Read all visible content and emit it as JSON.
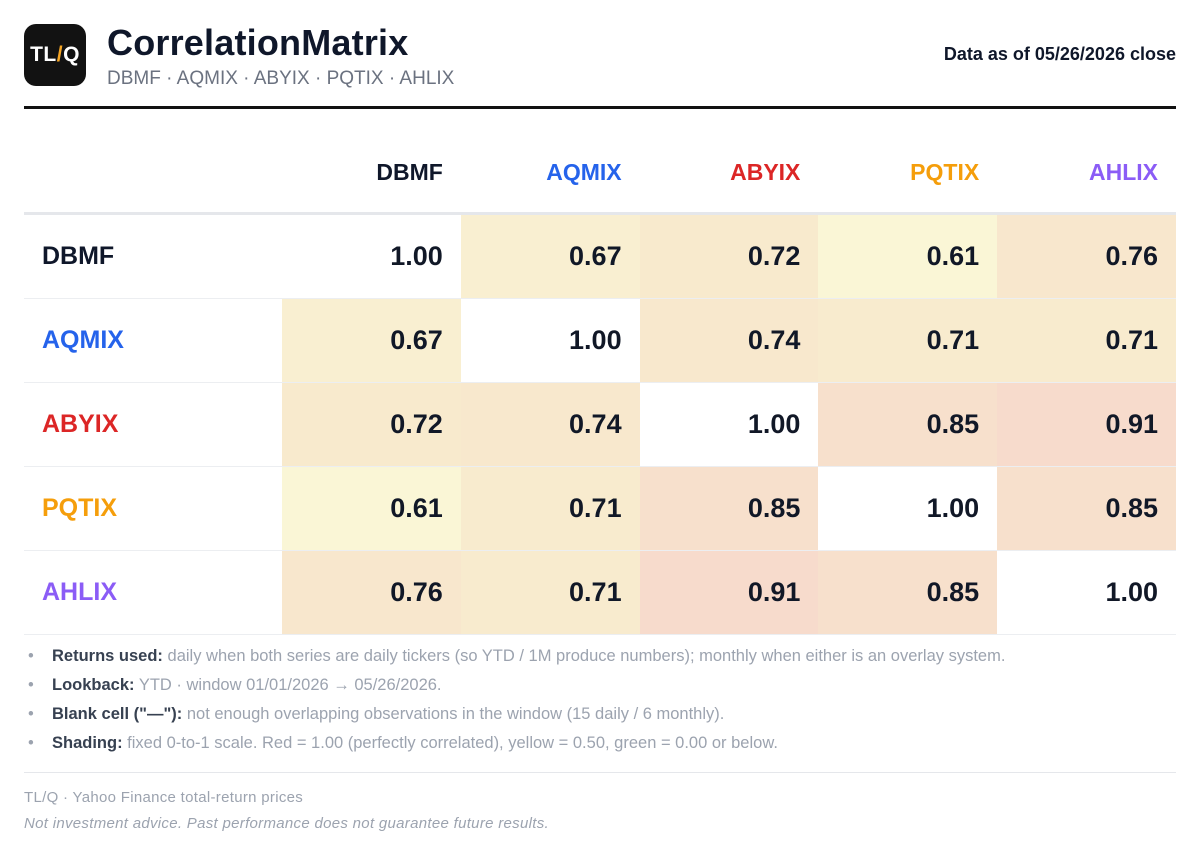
{
  "header": {
    "logo_text_left": "TL",
    "logo_text_slash": "/",
    "logo_text_right": "Q",
    "title": "CorrelationMatrix",
    "subtitle": "DBMF · AQMIX · ABYIX · PQTIX · AHLIX",
    "as_of": "Data as of 05/26/2026 close"
  },
  "colors": {
    "DBMF": "#0f172a",
    "AQMIX": "#2563eb",
    "ABYIX": "#dc2626",
    "PQTIX": "#f59e0b",
    "AHLIX": "#8b5cf6",
    "logo_bg": "#121212",
    "logo_slash": "#f5a524"
  },
  "matrix": {
    "tickers": [
      "DBMF",
      "AQMIX",
      "ABYIX",
      "PQTIX",
      "AHLIX"
    ],
    "values": [
      [
        "1.00",
        "0.67",
        "0.72",
        "0.61",
        "0.76"
      ],
      [
        "0.67",
        "1.00",
        "0.74",
        "0.71",
        "0.71"
      ],
      [
        "0.72",
        "0.74",
        "1.00",
        "0.85",
        "0.91"
      ],
      [
        "0.61",
        "0.71",
        "0.85",
        "1.00",
        "0.85"
      ],
      [
        "0.76",
        "0.71",
        "0.91",
        "0.85",
        "1.00"
      ]
    ],
    "shading": {
      "scale": "fixed 0-to-1",
      "red_at": 1.0,
      "yellow_at": 0.5,
      "green_at": 0.0,
      "diagonal": "white"
    }
  },
  "notes": [
    {
      "label": "Returns used:",
      "text": "daily when both series are daily tickers (so YTD / 1M produce numbers); monthly when either is an overlay system."
    },
    {
      "label": "Lookback:",
      "text": "YTD · window 01/01/2026 → 05/26/2026."
    },
    {
      "label": "Blank cell (\"—\"):",
      "text": "not enough overlapping observations in the window (15 daily / 6 monthly)."
    },
    {
      "label": "Shading:",
      "text": "fixed 0-to-1 scale. Red = 1.00 (perfectly correlated), yellow = 0.50, green = 0.00 or below."
    }
  ],
  "footer": {
    "source": "TL/Q · Yahoo Finance total-return prices",
    "disclaimer": "Not investment advice. Past performance does not guarantee future results."
  }
}
